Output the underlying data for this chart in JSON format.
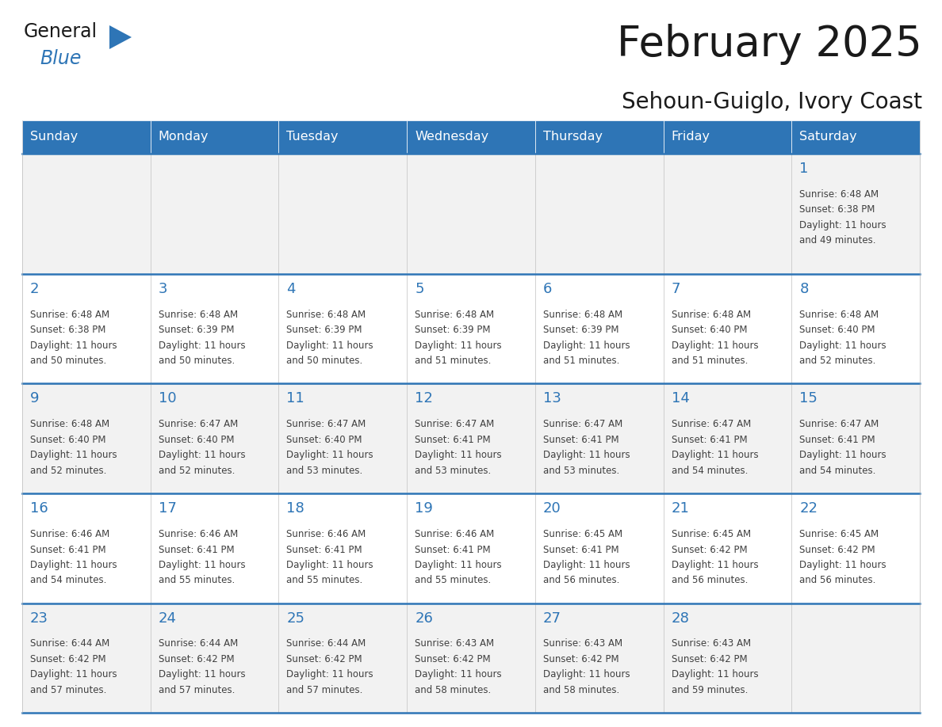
{
  "title": "February 2025",
  "subtitle": "Sehoun-Guiglo, Ivory Coast",
  "header_bg": "#2E75B6",
  "header_text_color": "#FFFFFF",
  "odd_row_bg": "#F2F2F2",
  "even_row_bg": "#FFFFFF",
  "cell_border_color": "#BFBFBF",
  "week_separator_color": "#2E75B6",
  "day_number_color": "#2E75B6",
  "info_text_color": "#404040",
  "title_color": "#1a1a1a",
  "subtitle_color": "#1a1a1a",
  "logo_general_color": "#1a1a1a",
  "logo_blue_color": "#2E75B6",
  "logo_triangle_color": "#2E75B6",
  "days_of_week": [
    "Sunday",
    "Monday",
    "Tuesday",
    "Wednesday",
    "Thursday",
    "Friday",
    "Saturday"
  ],
  "calendar_data": [
    [
      null,
      null,
      null,
      null,
      null,
      null,
      {
        "day": 1,
        "sunrise": "6:48 AM",
        "sunset": "6:38 PM",
        "daylight": "11 hours and 49 minutes."
      }
    ],
    [
      {
        "day": 2,
        "sunrise": "6:48 AM",
        "sunset": "6:38 PM",
        "daylight": "11 hours and 50 minutes."
      },
      {
        "day": 3,
        "sunrise": "6:48 AM",
        "sunset": "6:39 PM",
        "daylight": "11 hours and 50 minutes."
      },
      {
        "day": 4,
        "sunrise": "6:48 AM",
        "sunset": "6:39 PM",
        "daylight": "11 hours and 50 minutes."
      },
      {
        "day": 5,
        "sunrise": "6:48 AM",
        "sunset": "6:39 PM",
        "daylight": "11 hours and 51 minutes."
      },
      {
        "day": 6,
        "sunrise": "6:48 AM",
        "sunset": "6:39 PM",
        "daylight": "11 hours and 51 minutes."
      },
      {
        "day": 7,
        "sunrise": "6:48 AM",
        "sunset": "6:40 PM",
        "daylight": "11 hours and 51 minutes."
      },
      {
        "day": 8,
        "sunrise": "6:48 AM",
        "sunset": "6:40 PM",
        "daylight": "11 hours and 52 minutes."
      }
    ],
    [
      {
        "day": 9,
        "sunrise": "6:48 AM",
        "sunset": "6:40 PM",
        "daylight": "11 hours and 52 minutes."
      },
      {
        "day": 10,
        "sunrise": "6:47 AM",
        "sunset": "6:40 PM",
        "daylight": "11 hours and 52 minutes."
      },
      {
        "day": 11,
        "sunrise": "6:47 AM",
        "sunset": "6:40 PM",
        "daylight": "11 hours and 53 minutes."
      },
      {
        "day": 12,
        "sunrise": "6:47 AM",
        "sunset": "6:41 PM",
        "daylight": "11 hours and 53 minutes."
      },
      {
        "day": 13,
        "sunrise": "6:47 AM",
        "sunset": "6:41 PM",
        "daylight": "11 hours and 53 minutes."
      },
      {
        "day": 14,
        "sunrise": "6:47 AM",
        "sunset": "6:41 PM",
        "daylight": "11 hours and 54 minutes."
      },
      {
        "day": 15,
        "sunrise": "6:47 AM",
        "sunset": "6:41 PM",
        "daylight": "11 hours and 54 minutes."
      }
    ],
    [
      {
        "day": 16,
        "sunrise": "6:46 AM",
        "sunset": "6:41 PM",
        "daylight": "11 hours and 54 minutes."
      },
      {
        "day": 17,
        "sunrise": "6:46 AM",
        "sunset": "6:41 PM",
        "daylight": "11 hours and 55 minutes."
      },
      {
        "day": 18,
        "sunrise": "6:46 AM",
        "sunset": "6:41 PM",
        "daylight": "11 hours and 55 minutes."
      },
      {
        "day": 19,
        "sunrise": "6:46 AM",
        "sunset": "6:41 PM",
        "daylight": "11 hours and 55 minutes."
      },
      {
        "day": 20,
        "sunrise": "6:45 AM",
        "sunset": "6:41 PM",
        "daylight": "11 hours and 56 minutes."
      },
      {
        "day": 21,
        "sunrise": "6:45 AM",
        "sunset": "6:42 PM",
        "daylight": "11 hours and 56 minutes."
      },
      {
        "day": 22,
        "sunrise": "6:45 AM",
        "sunset": "6:42 PM",
        "daylight": "11 hours and 56 minutes."
      }
    ],
    [
      {
        "day": 23,
        "sunrise": "6:44 AM",
        "sunset": "6:42 PM",
        "daylight": "11 hours and 57 minutes."
      },
      {
        "day": 24,
        "sunrise": "6:44 AM",
        "sunset": "6:42 PM",
        "daylight": "11 hours and 57 minutes."
      },
      {
        "day": 25,
        "sunrise": "6:44 AM",
        "sunset": "6:42 PM",
        "daylight": "11 hours and 57 minutes."
      },
      {
        "day": 26,
        "sunrise": "6:43 AM",
        "sunset": "6:42 PM",
        "daylight": "11 hours and 58 minutes."
      },
      {
        "day": 27,
        "sunrise": "6:43 AM",
        "sunset": "6:42 PM",
        "daylight": "11 hours and 58 minutes."
      },
      {
        "day": 28,
        "sunrise": "6:43 AM",
        "sunset": "6:42 PM",
        "daylight": "11 hours and 59 minutes."
      },
      null
    ]
  ]
}
